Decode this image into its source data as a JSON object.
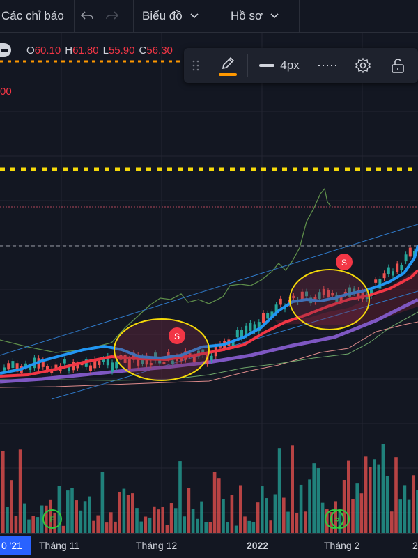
{
  "topbar": {
    "indicators_label": "Các chỉ báo",
    "chart_label": "Biểu đồ",
    "profile_label": "Hồ sơ"
  },
  "ohlc": {
    "open_label": "O",
    "open": "60.10",
    "high_label": "H",
    "high": "61.80",
    "low_label": "L",
    "low": "55.90",
    "close_label": "C",
    "close": "56.30"
  },
  "price_fragment": "00",
  "drawing_toolbar": {
    "stroke_width": "4px",
    "accent_color": "#ff9800"
  },
  "markers": {
    "signal_top": "S",
    "signal_mid": "S",
    "event_f": "F",
    "event_grid": "#"
  },
  "x_axis": {
    "current": "0 '21",
    "labels": [
      "Tháng 11",
      "Tháng 12",
      "2022",
      "Tháng 2",
      "2"
    ]
  },
  "colors": {
    "background": "#131722",
    "candle_up": "#26a69a",
    "candle_down": "#ef5350",
    "ma_fast": "#2196f3",
    "ma_mid": "#f23645",
    "ma_slow": "#7e57c2",
    "highlight": "#f5d90a"
  }
}
